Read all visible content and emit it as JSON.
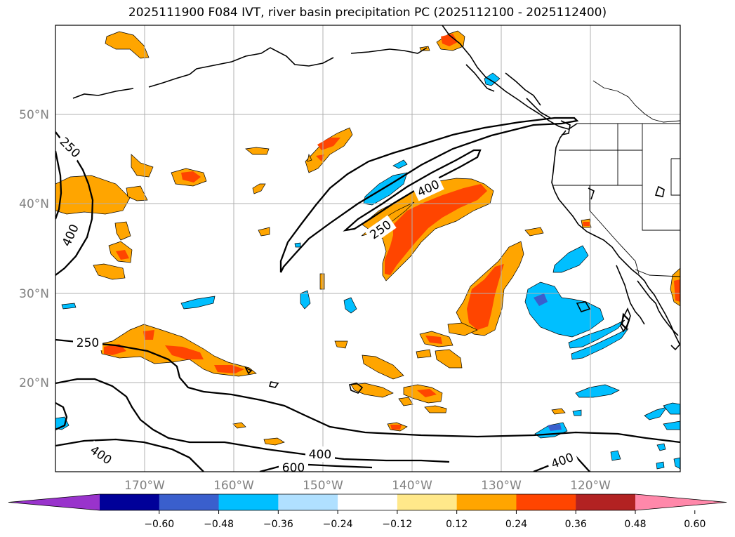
{
  "title": "2025111900 F084 IVT, river basin precipitation PC (2025112100 - 2025112400)",
  "lat_labels": [
    "50°N",
    "40°N",
    "30°N",
    "20°N"
  ],
  "lon_labels": [
    "170°W",
    "160°W",
    "150°W",
    "140°W",
    "130°W",
    "120°W"
  ],
  "contour_labels": [
    "250",
    "400",
    "400",
    "250",
    "250",
    "400",
    "400",
    "600",
    "400"
  ],
  "colorbar": {
    "ticks": [
      "−0.60",
      "−0.48",
      "−0.36",
      "−0.24",
      "−0.12",
      "0.12",
      "0.24",
      "0.36",
      "0.48",
      "0.60"
    ],
    "colors": [
      "#9933cc",
      "#000099",
      "#3a5fcd",
      "#00bfff",
      "#b0e0ff",
      "#ffffff",
      "#ffe88a",
      "#ffa500",
      "#ff4500",
      "#b22222",
      "#ff88aa"
    ]
  },
  "colors": {
    "orange": "#ffa500",
    "red_orange": "#ff4500",
    "sky_blue": "#00bfff",
    "blue": "#3a5fcd",
    "grid": "#b0b0b0",
    "label_gray": "#808080"
  }
}
